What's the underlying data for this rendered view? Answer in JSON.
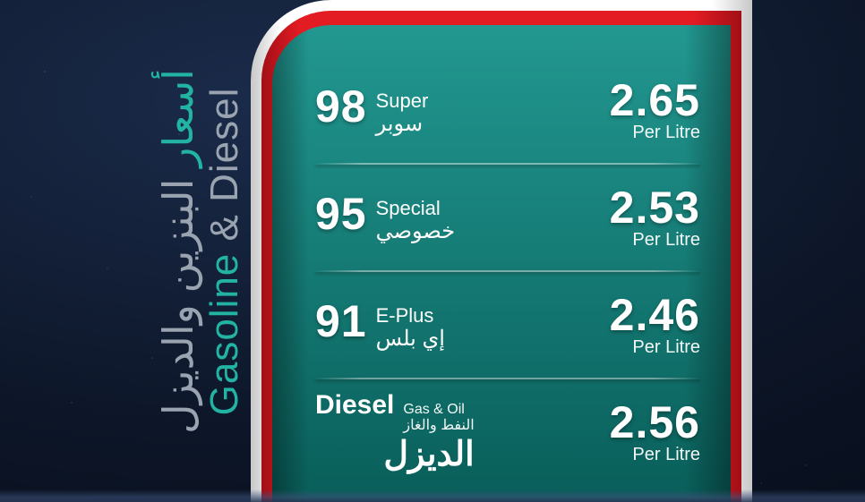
{
  "colors": {
    "bg_radial_inner": "#1a2b4a",
    "bg_radial_mid": "#0d1628",
    "bg_radial_outer": "#050a16",
    "accent_teal": "#23b3a3",
    "muted_gray": "#9aa4b0",
    "pillar_white": "#ffffff",
    "band_red": "#e31b23",
    "band_red_dark": "#a10f16",
    "board_teal_top": "#0f8f87",
    "board_teal_bottom": "#0a6b66",
    "text_white": "#ffffff"
  },
  "title": {
    "ar_accent": "أسعار",
    "ar_rest": "البنزين والديزل",
    "en_accent": "Gasoline",
    "en_rest": "& Diesel"
  },
  "unit_label": "Per Litre",
  "rows": [
    {
      "num": "98",
      "name_en": "Super",
      "name_ar": "سوبر",
      "price": "2.65"
    },
    {
      "num": "95",
      "name_en": "Special",
      "name_ar": "خصوصي",
      "price": "2.53"
    },
    {
      "num": "91",
      "name_en": "E-Plus",
      "name_ar": "إي بلس",
      "price": "2.46"
    }
  ],
  "diesel": {
    "label_en": "Diesel",
    "label_ar": "الديزل",
    "sub_en": "Gas & Oil",
    "sub_ar": "النفط والغاز",
    "price": "2.56"
  }
}
